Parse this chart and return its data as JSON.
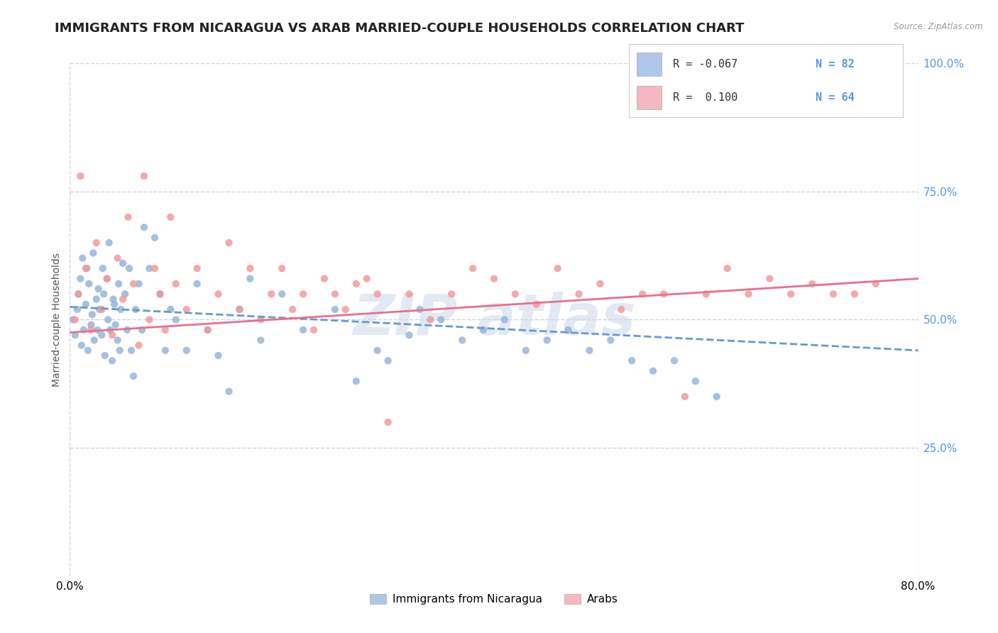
{
  "title": "IMMIGRANTS FROM NICARAGUA VS ARAB MARRIED-COUPLE HOUSEHOLDS CORRELATION CHART",
  "source_text": "Source: ZipAtlas.com",
  "ylabel": "Married-couple Households",
  "xlim": [
    0.0,
    80.0
  ],
  "ylim": [
    0.0,
    100.0
  ],
  "blue_color": "#aec6e8",
  "pink_color": "#f4b8c1",
  "blue_line_color": "#6699cc",
  "pink_line_color": "#e87090",
  "blue_scatter_color": "#92b4d8",
  "pink_scatter_color": "#f09898",
  "background_color": "#ffffff",
  "grid_color": "#c8d4e8",
  "title_fontsize": 13,
  "axis_label_fontsize": 10,
  "tick_fontsize": 11,
  "right_tick_color": "#5599dd",
  "watermark_color": "#ccd8ea",
  "blue_trend_start_y": 52.5,
  "blue_trend_end_y": 44.0,
  "pink_trend_start_y": 47.5,
  "pink_trend_end_y": 58.0,
  "blue_x": [
    0.3,
    0.5,
    0.7,
    0.8,
    1.0,
    1.1,
    1.2,
    1.3,
    1.5,
    1.6,
    1.7,
    1.8,
    2.0,
    2.1,
    2.2,
    2.3,
    2.5,
    2.6,
    2.7,
    2.8,
    3.0,
    3.1,
    3.2,
    3.3,
    3.5,
    3.6,
    3.7,
    3.8,
    4.0,
    4.1,
    4.2,
    4.3,
    4.5,
    4.6,
    4.7,
    4.8,
    5.0,
    5.2,
    5.4,
    5.6,
    5.8,
    6.0,
    6.2,
    6.5,
    6.8,
    7.0,
    7.5,
    8.0,
    8.5,
    9.0,
    9.5,
    10.0,
    11.0,
    12.0,
    13.0,
    14.0,
    15.0,
    16.0,
    17.0,
    18.0,
    20.0,
    22.0,
    25.0,
    27.0,
    29.0,
    30.0,
    32.0,
    33.0,
    35.0,
    37.0,
    39.0,
    41.0,
    43.0,
    45.0,
    47.0,
    49.0,
    51.0,
    53.0,
    55.0,
    57.0,
    59.0,
    61.0
  ],
  "blue_y": [
    50,
    47,
    52,
    55,
    58,
    45,
    62,
    48,
    53,
    60,
    44,
    57,
    49,
    51,
    63,
    46,
    54,
    48,
    56,
    52,
    47,
    60,
    55,
    43,
    58,
    50,
    65,
    48,
    42,
    54,
    53,
    49,
    46,
    57,
    44,
    52,
    61,
    55,
    48,
    60,
    44,
    39,
    52,
    57,
    48,
    68,
    60,
    66,
    55,
    44,
    52,
    50,
    44,
    57,
    48,
    43,
    36,
    52,
    58,
    46,
    55,
    48,
    52,
    38,
    44,
    42,
    47,
    52,
    50,
    46,
    48,
    50,
    44,
    46,
    48,
    44,
    46,
    42,
    40,
    42,
    38,
    35
  ],
  "pink_x": [
    0.5,
    0.8,
    1.0,
    1.5,
    2.0,
    2.5,
    3.0,
    3.5,
    4.0,
    4.5,
    5.0,
    5.5,
    6.0,
    6.5,
    7.0,
    7.5,
    8.0,
    8.5,
    9.0,
    9.5,
    10.0,
    11.0,
    12.0,
    13.0,
    14.0,
    15.0,
    16.0,
    17.0,
    18.0,
    19.0,
    20.0,
    21.0,
    22.0,
    23.0,
    24.0,
    25.0,
    26.0,
    27.0,
    28.0,
    29.0,
    30.0,
    32.0,
    34.0,
    36.0,
    38.0,
    40.0,
    42.0,
    44.0,
    46.0,
    48.0,
    50.0,
    52.0,
    54.0,
    56.0,
    58.0,
    60.0,
    62.0,
    64.0,
    66.0,
    68.0,
    70.0,
    72.0,
    74.0,
    76.0
  ],
  "pink_y": [
    50,
    55,
    78,
    60,
    48,
    65,
    52,
    58,
    47,
    62,
    54,
    70,
    57,
    45,
    78,
    50,
    60,
    55,
    48,
    70,
    57,
    52,
    60,
    48,
    55,
    65,
    52,
    60,
    50,
    55,
    60,
    52,
    55,
    48,
    58,
    55,
    52,
    57,
    58,
    55,
    30,
    55,
    50,
    55,
    60,
    58,
    55,
    53,
    60,
    55,
    57,
    52,
    55,
    55,
    35,
    55,
    60,
    55,
    58,
    55,
    57,
    55,
    55,
    57
  ]
}
